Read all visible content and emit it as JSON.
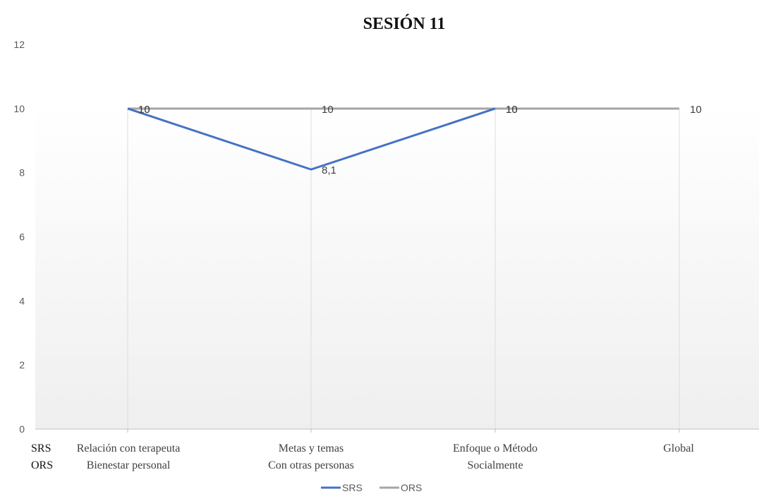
{
  "chart_data": {
    "type": "line",
    "title": "SESIÓN 11",
    "row_labels": [
      "SRS",
      "ORS"
    ],
    "categories": [
      {
        "srs_label": "Relación con terapeuta",
        "ors_label": "Bienestar personal"
      },
      {
        "srs_label": "Metas y temas",
        "ors_label": "Con otras personas"
      },
      {
        "srs_label": "Enfoque o Método",
        "ors_label": "Socialmente"
      },
      {
        "srs_label": "Global",
        "ors_label": ""
      }
    ],
    "series": [
      {
        "name": "SRS",
        "values": [
          10,
          8.1,
          10,
          null
        ],
        "value_labels": [
          "10",
          "8,1",
          "10",
          ""
        ],
        "color": "#4472C4"
      },
      {
        "name": "ORS",
        "values": [
          10,
          10,
          10,
          10
        ],
        "value_labels": [
          "10",
          "10",
          "10",
          "10"
        ],
        "color": "#A5A5A5"
      }
    ],
    "ylim": [
      0,
      12
    ],
    "yticks": [
      0,
      2,
      4,
      6,
      8,
      10,
      12
    ],
    "grid": "vertical",
    "legend": "bottom"
  }
}
